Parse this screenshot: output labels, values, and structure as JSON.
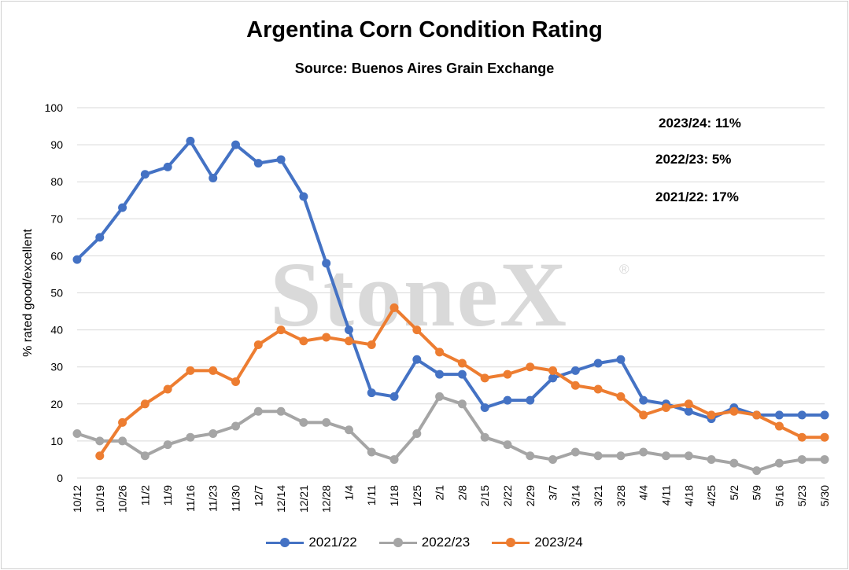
{
  "chart_data": {
    "type": "line",
    "title": "Argentina Corn Condition Rating",
    "subtitle": "Source: Buenos Aires Grain Exchange",
    "ylabel": "% rated good/excellent",
    "xlabel": "",
    "ylim": [
      0,
      100
    ],
    "yticks": [
      0,
      10,
      20,
      30,
      40,
      50,
      60,
      70,
      80,
      90,
      100
    ],
    "grid": true,
    "legend_position": "bottom",
    "categories": [
      "10/12",
      "10/19",
      "10/26",
      "11/2",
      "11/9",
      "11/16",
      "11/23",
      "11/30",
      "12/7",
      "12/14",
      "12/21",
      "12/28",
      "1/4",
      "1/11",
      "1/18",
      "1/25",
      "2/1",
      "2/8",
      "2/15",
      "2/22",
      "2/29",
      "3/7",
      "3/14",
      "3/21",
      "3/28",
      "4/4",
      "4/11",
      "4/18",
      "4/25",
      "5/2",
      "5/9",
      "5/16",
      "5/23",
      "5/30"
    ],
    "series": [
      {
        "name": "2021/22",
        "color": "#4472C4",
        "values": [
          59,
          65,
          73,
          82,
          84,
          91,
          81,
          90,
          85,
          86,
          76,
          58,
          40,
          23,
          22,
          32,
          28,
          28,
          19,
          21,
          21,
          27,
          29,
          31,
          32,
          21,
          20,
          18,
          16,
          19,
          17,
          17,
          17,
          17
        ]
      },
      {
        "name": "2022/23",
        "color": "#A5A5A5",
        "values": [
          12,
          10,
          10,
          6,
          9,
          11,
          12,
          14,
          18,
          18,
          15,
          15,
          13,
          7,
          5,
          12,
          22,
          20,
          11,
          9,
          6,
          5,
          7,
          6,
          6,
          7,
          6,
          6,
          5,
          4,
          2,
          4,
          5,
          5
        ]
      },
      {
        "name": "2023/24",
        "color": "#ED7D31",
        "values": [
          null,
          6,
          15,
          20,
          24,
          29,
          29,
          26,
          36,
          40,
          37,
          38,
          37,
          36,
          46,
          40,
          34,
          31,
          27,
          28,
          30,
          29,
          25,
          24,
          22,
          17,
          19,
          20,
          17,
          18,
          17,
          14,
          11,
          11
        ]
      }
    ],
    "annotations": [
      "2023/24: 11%",
      "2022/23: 5%",
      "2021/22: 17%"
    ]
  },
  "watermark": "StoneX",
  "watermark_mark": "®"
}
